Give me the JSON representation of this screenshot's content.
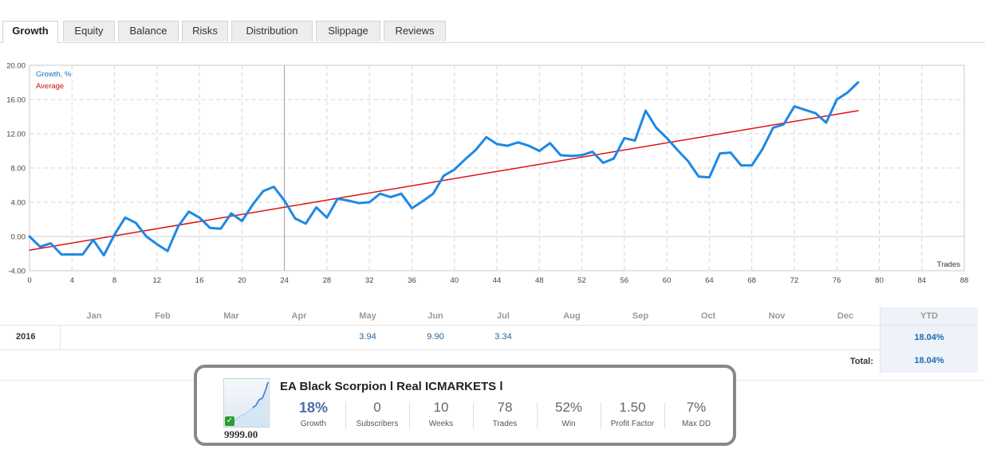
{
  "tabs": [
    {
      "label": "Growth",
      "active": true
    },
    {
      "label": "Equity"
    },
    {
      "label": "Balance"
    },
    {
      "label": "Risks"
    },
    {
      "label": "Distribution"
    },
    {
      "label": "Slippage"
    },
    {
      "label": "Reviews"
    }
  ],
  "chart_data": {
    "type": "line",
    "ylim": [
      -4,
      20
    ],
    "xlim": [
      0,
      88
    ],
    "yticks": [
      "-4.00",
      "0.00",
      "4.00",
      "8.00",
      "12.00",
      "16.00",
      "20.00"
    ],
    "xticks": [
      "0",
      "4",
      "8",
      "12",
      "16",
      "20",
      "24",
      "28",
      "32",
      "36",
      "40",
      "44",
      "48",
      "52",
      "56",
      "60",
      "64",
      "68",
      "72",
      "76",
      "80",
      "84",
      "88"
    ],
    "xlabel": "Trades",
    "grid": true,
    "legend": [
      "Growth, %",
      "Average"
    ],
    "series": [
      {
        "name": "Growth, %",
        "color": "#1e88e5",
        "x": [
          0,
          1,
          2,
          3,
          4,
          5,
          6,
          7,
          8,
          9,
          10,
          11,
          12,
          13,
          14,
          15,
          16,
          17,
          18,
          19,
          20,
          21,
          22,
          23,
          24,
          25,
          26,
          27,
          28,
          29,
          30,
          31,
          32,
          33,
          34,
          35,
          36,
          37,
          38,
          39,
          40,
          41,
          42,
          43,
          44,
          45,
          46,
          47,
          48,
          49,
          50,
          51,
          52,
          53,
          54,
          55,
          56,
          57,
          58,
          59,
          60,
          61,
          62,
          63,
          64,
          65,
          66,
          67,
          68,
          69,
          70,
          71,
          72,
          73,
          74,
          75,
          76,
          77,
          78
        ],
        "y": [
          0.0,
          -1.2,
          -0.8,
          -2.1,
          -2.1,
          -2.1,
          -0.4,
          -2.2,
          0.2,
          2.2,
          1.6,
          0.0,
          -0.9,
          -1.7,
          1.2,
          2.9,
          2.2,
          1.0,
          0.9,
          2.7,
          1.8,
          3.7,
          5.3,
          5.8,
          4.2,
          2.1,
          1.5,
          3.4,
          2.2,
          4.4,
          4.2,
          3.9,
          4.0,
          5.0,
          4.6,
          5.0,
          3.3,
          4.1,
          5.0,
          7.1,
          7.8,
          9.0,
          10.1,
          11.6,
          10.8,
          10.6,
          11.0,
          10.6,
          10.0,
          10.9,
          9.5,
          9.4,
          9.5,
          9.9,
          8.6,
          9.1,
          11.5,
          11.2,
          14.7,
          12.7,
          11.5,
          10.1,
          8.8,
          7.0,
          6.9,
          9.7,
          9.8,
          8.3,
          8.3,
          10.2,
          12.7,
          13.1,
          15.2,
          14.8,
          14.4,
          13.3,
          16.0,
          16.8,
          18.0
        ]
      },
      {
        "name": "Average",
        "color": "#dd1111",
        "x": [
          0,
          78
        ],
        "y": [
          -1.6,
          14.7
        ]
      }
    ]
  },
  "monthly": {
    "months": [
      "Jan",
      "Feb",
      "Mar",
      "Apr",
      "May",
      "Jun",
      "Jul",
      "Aug",
      "Sep",
      "Oct",
      "Nov",
      "Dec"
    ],
    "ytd_header": "YTD",
    "rows": [
      {
        "year": "2016",
        "values": [
          "",
          "",
          "",
          "",
          "3.94",
          "9.90",
          "3.34",
          "",
          "",
          "",
          "",
          ""
        ],
        "ytd": "18.04%"
      }
    ],
    "total_label": "Total:",
    "total_value": "18.04%"
  },
  "signal": {
    "title": "EA Black Scorpion l Real ICMARKETS l",
    "price": "9999.00",
    "stats": [
      {
        "value": "18%",
        "label": "Growth"
      },
      {
        "value": "0",
        "label": "Subscribers"
      },
      {
        "value": "10",
        "label": "Weeks"
      },
      {
        "value": "78",
        "label": "Trades"
      },
      {
        "value": "52%",
        "label": "Win"
      },
      {
        "value": "1.50",
        "label": "Profit Factor"
      },
      {
        "value": "7%",
        "label": "Max DD"
      }
    ]
  }
}
